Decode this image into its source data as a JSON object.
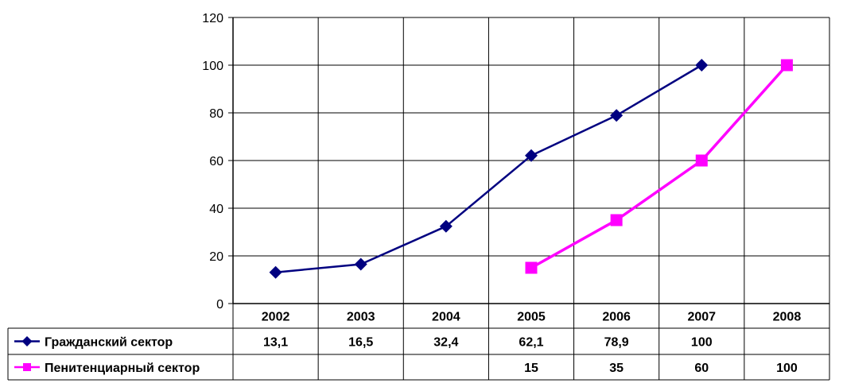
{
  "chart_data": {
    "type": "line",
    "categories": [
      "2002",
      "2003",
      "2004",
      "2005",
      "2006",
      "2007",
      "2008"
    ],
    "ylim": [
      0,
      120
    ],
    "yticks": [
      "0",
      "20",
      "40",
      "60",
      "80",
      "100",
      "120"
    ],
    "grid": true,
    "legend": "data-table",
    "series": [
      {
        "name": "Гражданский сектор",
        "color": "#000080",
        "marker": "diamond",
        "values": [
          13.1,
          16.5,
          32.4,
          62.1,
          78.9,
          100,
          null
        ],
        "labels": [
          "13,1",
          "16,5",
          "32,4",
          "62,1",
          "78,9",
          "100",
          ""
        ]
      },
      {
        "name": "Пенитенциарный сектор",
        "color": "#FF00FF",
        "marker": "square",
        "values": [
          null,
          null,
          null,
          15,
          35,
          60,
          100
        ],
        "labels": [
          "",
          "",
          "",
          "15",
          "35",
          "60",
          "100"
        ]
      }
    ]
  }
}
